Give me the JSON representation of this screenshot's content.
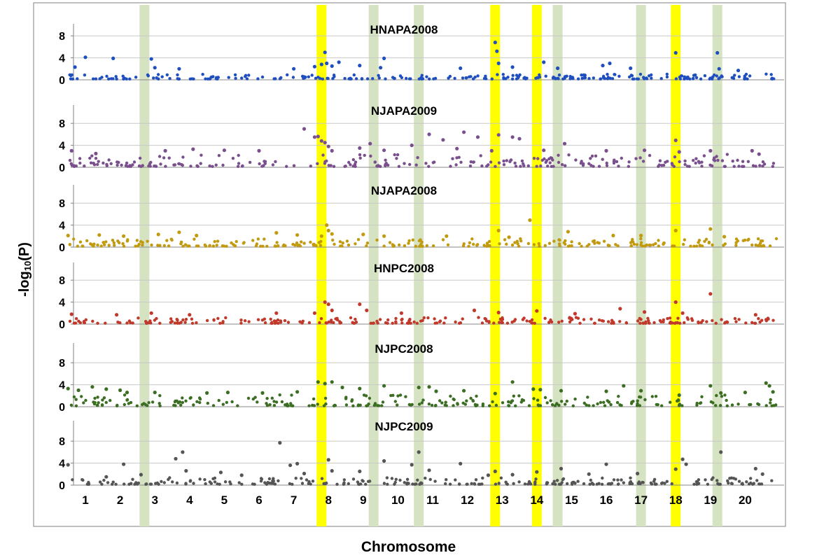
{
  "figure": {
    "ylabel_prefix": "-log",
    "ylabel_sub": "10",
    "ylabel_suffix": "(P)",
    "xlabel": "Chromosome"
  },
  "chart_data": {
    "type": "scatter",
    "xlabel": "Chromosome",
    "ylabel": "-log10(P)",
    "chromosomes": [
      "1",
      "2",
      "3",
      "4",
      "5",
      "6",
      "7",
      "8",
      "9",
      "10",
      "11",
      "12",
      "13",
      "14",
      "15",
      "16",
      "17",
      "18",
      "19",
      "20"
    ],
    "yticks": [
      0,
      4,
      8
    ],
    "ylim": [
      0,
      10
    ],
    "grid": true,
    "highlight_colors": {
      "major": "#ffff00",
      "minor": "#d6e3c2"
    },
    "highlights": [
      {
        "position": 2.7,
        "kind": "minor"
      },
      {
        "position": 7.8,
        "kind": "major"
      },
      {
        "position": 9.3,
        "kind": "minor"
      },
      {
        "position": 10.6,
        "kind": "minor"
      },
      {
        "position": 12.8,
        "kind": "major"
      },
      {
        "position": 14.0,
        "kind": "major"
      },
      {
        "position": 14.6,
        "kind": "minor"
      },
      {
        "position": 17.0,
        "kind": "minor"
      },
      {
        "position": 18.0,
        "kind": "major"
      },
      {
        "position": 19.2,
        "kind": "minor"
      }
    ],
    "series": [
      {
        "name": "HNAPA2008",
        "color": "#1f4fbf",
        "points": [
          [
            0.7,
            2.3
          ],
          [
            1.0,
            4.1
          ],
          [
            1.8,
            3.9
          ],
          [
            2.9,
            3.8
          ],
          [
            3.0,
            2.2
          ],
          [
            3.7,
            2.0
          ],
          [
            7.0,
            2.0
          ],
          [
            7.6,
            2.4
          ],
          [
            7.8,
            2.8
          ],
          [
            7.9,
            5.0
          ],
          [
            7.95,
            3.0
          ],
          [
            8.1,
            2.5
          ],
          [
            8.3,
            3.2
          ],
          [
            8.9,
            2.6
          ],
          [
            9.5,
            2.2
          ],
          [
            9.6,
            3.9
          ],
          [
            11.8,
            2.1
          ],
          [
            12.8,
            6.8
          ],
          [
            12.85,
            5.2
          ],
          [
            12.9,
            3.0
          ],
          [
            13.3,
            2.3
          ],
          [
            14.2,
            3.2
          ],
          [
            14.6,
            2.1
          ],
          [
            15.9,
            2.6
          ],
          [
            16.1,
            3.0
          ],
          [
            16.7,
            2.1
          ],
          [
            18.0,
            4.9
          ],
          [
            19.2,
            4.9
          ],
          [
            19.25,
            2.0
          ],
          [
            19.8,
            1.7
          ]
        ]
      },
      {
        "name": "NJAPA2009",
        "color": "#7a4f8d",
        "points": [
          [
            0.6,
            3.0
          ],
          [
            1.3,
            2.5
          ],
          [
            3.3,
            3.0
          ],
          [
            4.1,
            3.3
          ],
          [
            5.0,
            3.1
          ],
          [
            6.0,
            3.0
          ],
          [
            7.3,
            7.0
          ],
          [
            7.6,
            5.5
          ],
          [
            7.7,
            5.6
          ],
          [
            7.8,
            4.8
          ],
          [
            7.9,
            4.5
          ],
          [
            8.0,
            3.8
          ],
          [
            8.1,
            3.0
          ],
          [
            8.9,
            3.5
          ],
          [
            9.2,
            4.3
          ],
          [
            9.6,
            3.1
          ],
          [
            10.4,
            4.0
          ],
          [
            10.9,
            6.0
          ],
          [
            11.3,
            5.0
          ],
          [
            11.7,
            3.4
          ],
          [
            11.9,
            6.4
          ],
          [
            12.3,
            5.5
          ],
          [
            12.7,
            3.0
          ],
          [
            12.9,
            5.9
          ],
          [
            13.3,
            5.5
          ],
          [
            13.5,
            5.2
          ],
          [
            14.2,
            3.1
          ],
          [
            14.8,
            4.3
          ],
          [
            16.0,
            3.0
          ],
          [
            17.1,
            3.1
          ],
          [
            18.0,
            4.9
          ],
          [
            18.1,
            2.8
          ],
          [
            19.0,
            3.0
          ],
          [
            20.2,
            3.0
          ],
          [
            20.4,
            2.4
          ]
        ]
      },
      {
        "name": "NJAPA2008",
        "color": "#c29a0f",
        "points": [
          [
            0.5,
            2.1
          ],
          [
            1.4,
            2.2
          ],
          [
            2.1,
            2.0
          ],
          [
            3.1,
            2.3
          ],
          [
            3.7,
            2.7
          ],
          [
            4.2,
            2.1
          ],
          [
            6.5,
            2.6
          ],
          [
            7.1,
            2.2
          ],
          [
            7.8,
            2.0
          ],
          [
            7.95,
            4.0
          ],
          [
            8.0,
            3.0
          ],
          [
            8.1,
            2.4
          ],
          [
            9.0,
            2.3
          ],
          [
            9.6,
            2.0
          ],
          [
            11.4,
            2.0
          ],
          [
            12.9,
            3.0
          ],
          [
            13.2,
            1.8
          ],
          [
            13.8,
            4.9
          ],
          [
            14.9,
            2.8
          ],
          [
            16.2,
            2.1
          ],
          [
            17.0,
            2.1
          ],
          [
            18.0,
            3.0
          ],
          [
            19.0,
            3.3
          ],
          [
            19.4,
            1.9
          ]
        ]
      },
      {
        "name": "HNPC2008",
        "color": "#c0392b",
        "points": [
          [
            0.6,
            1.8
          ],
          [
            1.9,
            1.7
          ],
          [
            2.9,
            2.0
          ],
          [
            4.0,
            1.7
          ],
          [
            6.5,
            2.0
          ],
          [
            7.6,
            2.0
          ],
          [
            7.9,
            4.0
          ],
          [
            8.0,
            3.6
          ],
          [
            8.1,
            2.5
          ],
          [
            8.9,
            3.6
          ],
          [
            9.1,
            2.5
          ],
          [
            10.1,
            2.0
          ],
          [
            12.2,
            2.5
          ],
          [
            12.9,
            2.1
          ],
          [
            14.0,
            2.4
          ],
          [
            15.1,
            1.9
          ],
          [
            16.4,
            2.8
          ],
          [
            17.1,
            2.2
          ],
          [
            18.0,
            4.0
          ],
          [
            18.2,
            2.0
          ],
          [
            19.0,
            5.5
          ],
          [
            20.3,
            1.7
          ]
        ]
      },
      {
        "name": "NJPC2008",
        "color": "#3b6e22",
        "points": [
          [
            0.5,
            3.3
          ],
          [
            0.8,
            3.0
          ],
          [
            1.2,
            3.6
          ],
          [
            1.6,
            3.2
          ],
          [
            2.0,
            3.0
          ],
          [
            2.2,
            2.6
          ],
          [
            3.0,
            2.6
          ],
          [
            4.5,
            2.5
          ],
          [
            5.1,
            2.6
          ],
          [
            6.1,
            2.5
          ],
          [
            7.1,
            2.7
          ],
          [
            7.7,
            4.5
          ],
          [
            7.9,
            4.2
          ],
          [
            8.1,
            4.5
          ],
          [
            8.4,
            3.5
          ],
          [
            8.9,
            3.3
          ],
          [
            9.6,
            3.8
          ],
          [
            10.6,
            3.5
          ],
          [
            10.9,
            3.6
          ],
          [
            11.1,
            2.8
          ],
          [
            11.9,
            2.9
          ],
          [
            12.8,
            2.4
          ],
          [
            13.3,
            4.5
          ],
          [
            13.9,
            3.2
          ],
          [
            14.1,
            3.1
          ],
          [
            14.7,
            2.9
          ],
          [
            16.0,
            2.8
          ],
          [
            16.5,
            3.8
          ],
          [
            17.0,
            2.9
          ],
          [
            18.1,
            2.1
          ],
          [
            19.0,
            3.8
          ],
          [
            19.3,
            2.5
          ],
          [
            20.0,
            2.6
          ],
          [
            20.6,
            4.3
          ],
          [
            20.7,
            3.8
          ],
          [
            20.8,
            2.7
          ]
        ]
      },
      {
        "name": "NJPC2009",
        "color": "#555555",
        "points": [
          [
            0.5,
            3.7
          ],
          [
            1.6,
            1.5
          ],
          [
            2.1,
            3.8
          ],
          [
            2.6,
            1.9
          ],
          [
            3.6,
            4.8
          ],
          [
            3.8,
            6.0
          ],
          [
            3.9,
            2.6
          ],
          [
            4.9,
            2.3
          ],
          [
            5.5,
            1.8
          ],
          [
            6.6,
            7.7
          ],
          [
            6.9,
            3.6
          ],
          [
            7.1,
            3.9
          ],
          [
            7.3,
            2.1
          ],
          [
            8.0,
            4.6
          ],
          [
            8.1,
            2.6
          ],
          [
            8.9,
            2.5
          ],
          [
            9.6,
            4.4
          ],
          [
            10.4,
            3.7
          ],
          [
            10.6,
            6.0
          ],
          [
            10.9,
            2.7
          ],
          [
            11.8,
            3.9
          ],
          [
            12.6,
            1.8
          ],
          [
            12.8,
            2.5
          ],
          [
            13.3,
            1.9
          ],
          [
            14.0,
            2.4
          ],
          [
            14.7,
            3.0
          ],
          [
            15.5,
            2.0
          ],
          [
            16.0,
            3.8
          ],
          [
            16.9,
            2.1
          ],
          [
            18.0,
            2.9
          ],
          [
            18.2,
            4.7
          ],
          [
            18.3,
            3.8
          ],
          [
            19.3,
            6.0
          ],
          [
            20.3,
            3.0
          ],
          [
            20.5,
            2.0
          ]
        ]
      }
    ]
  }
}
